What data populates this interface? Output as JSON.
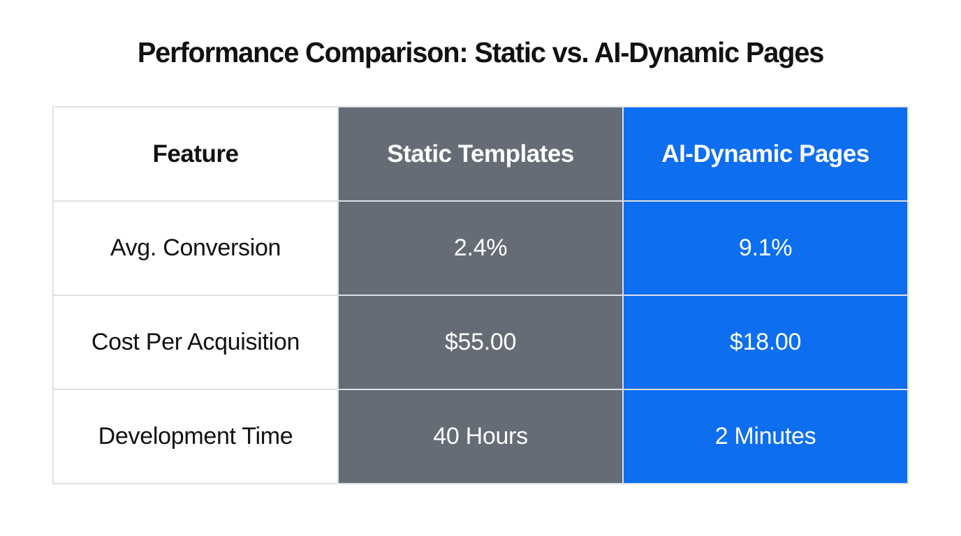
{
  "title": "Performance Comparison: Static vs. AI-Dynamic Pages",
  "colors": {
    "static_column": "#666c76",
    "ai_column": "#0d6ef0",
    "border": "#dde1e6",
    "text_dark": "#111111",
    "text_light": "#ffffff",
    "background": "#ffffff"
  },
  "table": {
    "headers": [
      "Feature",
      "Static Templates",
      "AI-Dynamic Pages"
    ],
    "rows": [
      {
        "feature": "Avg. Conversion",
        "static": "2.4%",
        "ai": "9.1%"
      },
      {
        "feature": "Cost Per Acquisition",
        "static": "$55.00",
        "ai": "$18.00"
      },
      {
        "feature": "Development Time",
        "static": "40 Hours",
        "ai": "2 Minutes"
      }
    ]
  },
  "chart_data": {
    "type": "table",
    "title": "Performance Comparison: Static vs. AI-Dynamic Pages",
    "columns": [
      "Feature",
      "Static Templates",
      "AI-Dynamic Pages"
    ],
    "rows": [
      [
        "Avg. Conversion",
        "2.4%",
        "9.1%"
      ],
      [
        "Cost Per Acquisition",
        "$55.00",
        "$18.00"
      ],
      [
        "Development Time",
        "40 Hours",
        "2 Minutes"
      ]
    ],
    "notes": "Comparison table graphic; highlight color on AI-Dynamic Pages column"
  }
}
